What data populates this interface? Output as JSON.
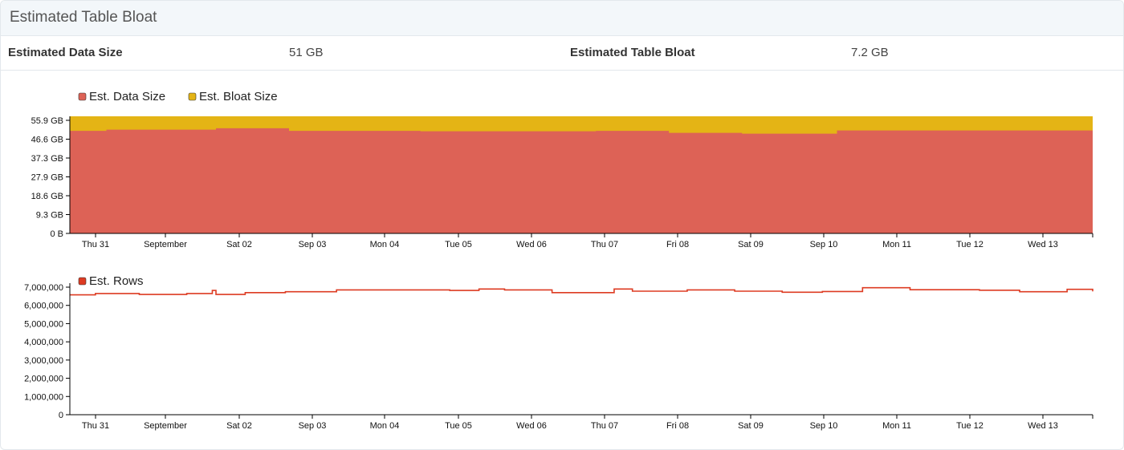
{
  "panel": {
    "title": "Estimated Table Bloat",
    "stats": [
      {
        "label": "Estimated Data Size",
        "value": "51 GB"
      },
      {
        "label": "Estimated Table Bloat",
        "value": "7.2 GB"
      }
    ]
  },
  "colors": {
    "data_size": "#dd6256",
    "bloat_size": "#e4b415",
    "rows": "#dd3b22"
  },
  "chart_data": [
    {
      "type": "area",
      "stacked": true,
      "legend": [
        "Est. Data Size",
        "Est. Bloat Size"
      ],
      "legend_position": "top-left",
      "x_ticks": [
        "Thu 31",
        "September",
        "Sat 02",
        "Sep 03",
        "Mon 04",
        "Tue 05",
        "Wed 06",
        "Thu 07",
        "Fri 08",
        "Sat 09",
        "Sep 10",
        "Mon 11",
        "Tue 12",
        "Wed 13"
      ],
      "y_ticks": [
        "0 B",
        "9.3 GB",
        "18.6 GB",
        "27.9 GB",
        "37.3 GB",
        "46.6 GB",
        "55.9 GB"
      ],
      "y_unit": "GB",
      "ylim": [
        0,
        55.9
      ],
      "x_domain_days": [
        0,
        14
      ],
      "series": [
        {
          "name": "Est. Data Size",
          "steps": [
            [
              0,
              50.7
            ],
            [
              0.5,
              51.3
            ],
            [
              2.0,
              52.0
            ],
            [
              3.0,
              50.7
            ],
            [
              4.8,
              50.5
            ],
            [
              7.2,
              50.7
            ],
            [
              8.2,
              49.7
            ],
            [
              9.2,
              49.3
            ],
            [
              10.5,
              50.9
            ],
            [
              14.0,
              51.0
            ]
          ]
        },
        {
          "name": "Est. Bloat Size",
          "total": 57.9
        }
      ]
    },
    {
      "type": "line",
      "legend": [
        "Est. Rows"
      ],
      "legend_position": "top-left",
      "x_ticks": [
        "Thu 31",
        "September",
        "Sat 02",
        "Sep 03",
        "Mon 04",
        "Tue 05",
        "Wed 06",
        "Thu 07",
        "Fri 08",
        "Sat 09",
        "Sep 10",
        "Mon 11",
        "Tue 12",
        "Wed 13"
      ],
      "y_ticks": [
        "0",
        "1,000,000",
        "2,000,000",
        "3,000,000",
        "4,000,000",
        "5,000,000",
        "6,000,000",
        "7,000,000"
      ],
      "ylim": [
        0,
        7000000
      ],
      "x_domain_days": [
        0,
        14
      ],
      "series": [
        {
          "name": "Est. Rows",
          "steps": [
            [
              0,
              6580000
            ],
            [
              0.35,
              6650000
            ],
            [
              0.95,
              6600000
            ],
            [
              1.6,
              6650000
            ],
            [
              1.95,
              6820000
            ],
            [
              2.0,
              6600000
            ],
            [
              2.4,
              6700000
            ],
            [
              2.95,
              6750000
            ],
            [
              3.65,
              6850000
            ],
            [
              5.2,
              6820000
            ],
            [
              5.6,
              6900000
            ],
            [
              5.95,
              6850000
            ],
            [
              6.6,
              6700000
            ],
            [
              7.45,
              6900000
            ],
            [
              7.7,
              6780000
            ],
            [
              8.45,
              6850000
            ],
            [
              9.1,
              6780000
            ],
            [
              9.75,
              6720000
            ],
            [
              10.3,
              6760000
            ],
            [
              10.85,
              6970000
            ],
            [
              11.5,
              6860000
            ],
            [
              12.45,
              6830000
            ],
            [
              13.0,
              6750000
            ],
            [
              13.65,
              6880000
            ],
            [
              14.0,
              6770000
            ]
          ]
        }
      ]
    }
  ]
}
